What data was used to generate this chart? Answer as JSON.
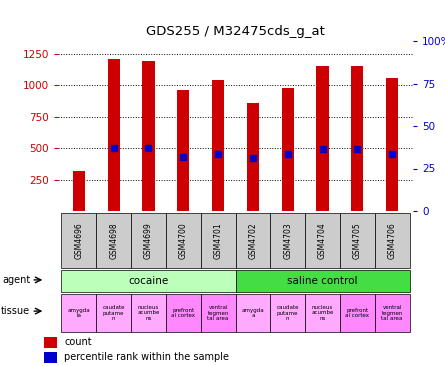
{
  "title": "GDS255 / M32475cds_g_at",
  "samples": [
    "GSM4696",
    "GSM4698",
    "GSM4699",
    "GSM4700",
    "GSM4701",
    "GSM4702",
    "GSM4703",
    "GSM4704",
    "GSM4705",
    "GSM4706"
  ],
  "counts": [
    320,
    1210,
    1195,
    960,
    1040,
    860,
    980,
    1150,
    1150,
    1060
  ],
  "blue_marker_values": [
    null,
    500,
    500,
    430,
    450,
    420,
    450,
    490,
    490,
    450
  ],
  "ylim_left": [
    0,
    1350
  ],
  "ylim_right": [
    0,
    100
  ],
  "yticks_left": [
    250,
    500,
    750,
    1000,
    1250
  ],
  "yticks_right": [
    0,
    25,
    50,
    75,
    100
  ],
  "bar_color": "#cc0000",
  "marker_color": "#0000cc",
  "agent_groups": [
    {
      "label": "cocaine",
      "start": 0,
      "end": 5,
      "color": "#bbffbb"
    },
    {
      "label": "saline control",
      "start": 5,
      "end": 10,
      "color": "#44dd44"
    }
  ],
  "tissues": [
    {
      "label": "amygda\nla",
      "color": "#ffaaff"
    },
    {
      "label": "caudate\nputame\nn",
      "color": "#ffaaff"
    },
    {
      "label": "nucleus\nacumbe\nns",
      "color": "#ffaaff"
    },
    {
      "label": "prefront\nal cortex",
      "color": "#ff88ff"
    },
    {
      "label": "ventral\ntegmen\ntal area",
      "color": "#ff88ff"
    },
    {
      "label": "amygda\na",
      "color": "#ffaaff"
    },
    {
      "label": "caudate\nputame\nn",
      "color": "#ffaaff"
    },
    {
      "label": "nucleus\nacumbe\nns",
      "color": "#ffaaff"
    },
    {
      "label": "prefront\nal cortex",
      "color": "#ff88ff"
    },
    {
      "label": "ventral\ntegmen\ntal area",
      "color": "#ff88ff"
    }
  ],
  "bar_width": 0.35,
  "sample_bg_color": "#cccccc",
  "legend_count_color": "#cc0000",
  "legend_marker_color": "#0000cc",
  "axis_color_left": "#cc0000",
  "axis_color_right": "#0000cc"
}
